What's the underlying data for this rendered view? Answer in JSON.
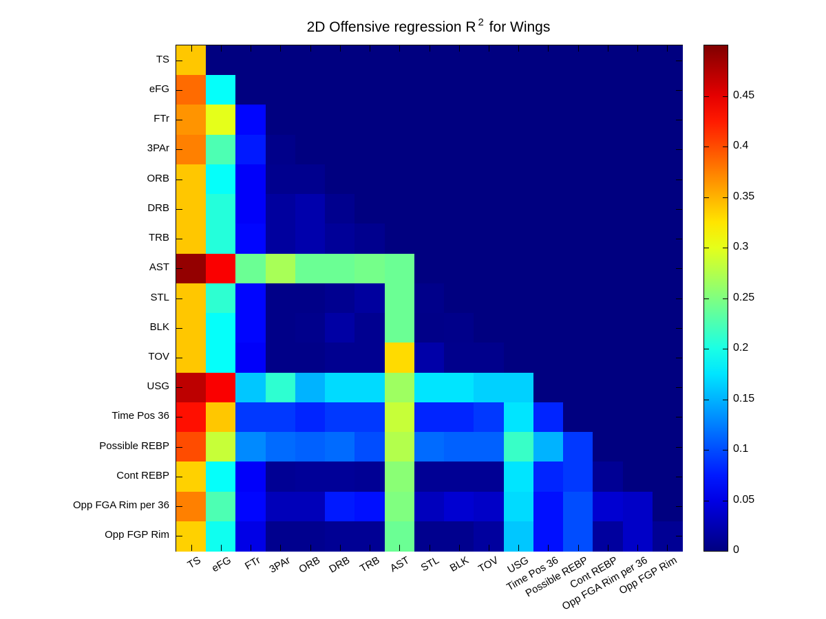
{
  "title": {
    "prefix": "2D Offensive regression R",
    "sup": "2",
    "suffix": " for Wings"
  },
  "chart_data": {
    "type": "heatmap",
    "title": "2D Offensive regression R^2 for Wings",
    "colormap": "jet",
    "vmin": 0,
    "vmax": 0.5,
    "legend_position": "right-colorbar",
    "colorbar_ticks": [
      "0",
      "0.05",
      "0.1",
      "0.15",
      "0.2",
      "0.25",
      "0.3",
      "0.35",
      "0.4",
      "0.45"
    ],
    "colorbar_tick_values": [
      0,
      0.05,
      0.1,
      0.15,
      0.2,
      0.25,
      0.3,
      0.35,
      0.4,
      0.45
    ],
    "categories": [
      "TS",
      "eFG",
      "FTr",
      "3PAr",
      "ORB",
      "DRB",
      "TRB",
      "AST",
      "STL",
      "BLK",
      "TOV",
      "USG",
      "Time Pos 36",
      "Possible REBP",
      "Cont REBP",
      "Opp FGA Rim per 36",
      "Opp FGP Rim"
    ],
    "matrix": [
      [
        0.34,
        null,
        null,
        null,
        null,
        null,
        null,
        null,
        null,
        null,
        null,
        null,
        null,
        null,
        null,
        null,
        null
      ],
      [
        0.385,
        0.19,
        null,
        null,
        null,
        null,
        null,
        null,
        null,
        null,
        null,
        null,
        null,
        null,
        null,
        null,
        null
      ],
      [
        0.365,
        0.3,
        0.065,
        null,
        null,
        null,
        null,
        null,
        null,
        null,
        null,
        null,
        null,
        null,
        null,
        null,
        null
      ],
      [
        0.375,
        0.225,
        0.075,
        0.005,
        null,
        null,
        null,
        null,
        null,
        null,
        null,
        null,
        null,
        null,
        null,
        null,
        null
      ],
      [
        0.34,
        0.19,
        0.06,
        0.007,
        0.007,
        null,
        null,
        null,
        null,
        null,
        null,
        null,
        null,
        null,
        null,
        null,
        null
      ],
      [
        0.34,
        0.205,
        0.06,
        0.015,
        0.022,
        0.007,
        null,
        null,
        null,
        null,
        null,
        null,
        null,
        null,
        null,
        null,
        null
      ],
      [
        0.34,
        0.205,
        0.065,
        0.015,
        0.022,
        0.012,
        0.007,
        null,
        null,
        null,
        null,
        null,
        null,
        null,
        null,
        null,
        null
      ],
      [
        0.49,
        0.44,
        0.24,
        0.27,
        0.24,
        0.24,
        0.245,
        0.24,
        null,
        null,
        null,
        null,
        null,
        null,
        null,
        null,
        null
      ],
      [
        0.34,
        0.21,
        0.065,
        0.004,
        0.004,
        0.008,
        0.015,
        0.24,
        0.005,
        null,
        null,
        null,
        null,
        null,
        null,
        null,
        null
      ],
      [
        0.34,
        0.19,
        0.065,
        0.004,
        0.006,
        0.018,
        0.008,
        0.24,
        0.004,
        0.005,
        null,
        null,
        null,
        null,
        null,
        null,
        null
      ],
      [
        0.34,
        0.19,
        0.06,
        0.004,
        0.004,
        0.008,
        0.008,
        0.33,
        0.02,
        0.006,
        0.006,
        null,
        null,
        null,
        null,
        null,
        null
      ],
      [
        0.47,
        0.44,
        0.16,
        0.21,
        0.15,
        0.17,
        0.17,
        0.265,
        0.175,
        0.175,
        0.165,
        0.165,
        null,
        null,
        null,
        null,
        null
      ],
      [
        0.43,
        0.34,
        0.09,
        0.09,
        0.08,
        0.09,
        0.09,
        0.285,
        0.08,
        0.08,
        0.09,
        0.175,
        0.08,
        null,
        null,
        null,
        null
      ],
      [
        0.4,
        0.285,
        0.13,
        0.115,
        0.11,
        0.115,
        0.1,
        0.275,
        0.115,
        0.11,
        0.11,
        0.215,
        0.15,
        0.09,
        null,
        null,
        null
      ],
      [
        0.335,
        0.19,
        0.06,
        0.01,
        0.012,
        0.012,
        0.01,
        0.255,
        0.01,
        0.01,
        0.01,
        0.175,
        0.08,
        0.09,
        0.01,
        null,
        null
      ],
      [
        0.375,
        0.225,
        0.065,
        0.028,
        0.028,
        0.075,
        0.07,
        0.25,
        0.03,
        0.04,
        0.035,
        0.17,
        0.07,
        0.1,
        0.04,
        0.035,
        null
      ],
      [
        0.335,
        0.195,
        0.05,
        0.007,
        0.007,
        0.01,
        0.01,
        0.24,
        0.007,
        0.007,
        0.015,
        0.16,
        0.07,
        0.1,
        0.015,
        0.035,
        0.01
      ]
    ],
    "empty_cell_color": "#000080",
    "grid": false
  }
}
